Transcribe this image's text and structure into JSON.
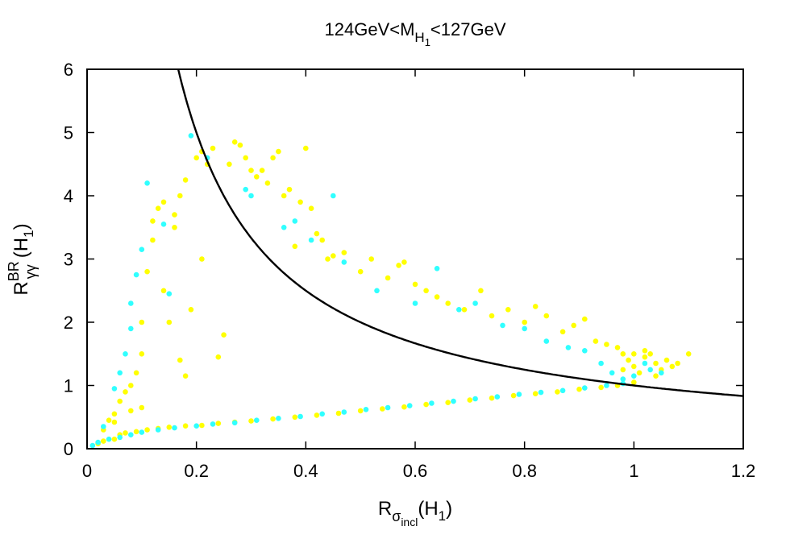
{
  "chart_data": {
    "type": "scatter",
    "title": {
      "main": "124GeV<M",
      "sub": "H",
      "subsub": "1",
      "tail": "<127GeV"
    },
    "xlabel": {
      "main": "R",
      "sub": "σ",
      "subsub": "incl",
      "tail": "(H",
      "tail_sub": "1",
      "close": ")"
    },
    "ylabel": {
      "main": "R",
      "sup": "BR",
      "sub": "γγ",
      "tail": "(H",
      "tail_sub": "1",
      "close": ")"
    },
    "xlim": [
      0,
      1.2
    ],
    "ylim": [
      0,
      6
    ],
    "xticks": [
      0,
      0.2,
      0.4,
      0.6,
      0.8,
      1,
      1.2
    ],
    "xtick_labels": [
      "0",
      "0.2",
      "0.4",
      "0.6",
      "0.8",
      "1",
      "1.2"
    ],
    "yticks": [
      0,
      1,
      2,
      3,
      4,
      5,
      6
    ],
    "ytick_labels": [
      "0",
      "1",
      "2",
      "3",
      "4",
      "5",
      "6"
    ],
    "grid": false,
    "curve": {
      "name": "x*y=1",
      "equation": "y = 1/x",
      "color": "#000000"
    },
    "series": [
      {
        "name": "yellow points",
        "color": "#ffff00",
        "points": [
          [
            0.02,
            0.08
          ],
          [
            0.03,
            0.12
          ],
          [
            0.05,
            0.15
          ],
          [
            0.06,
            0.22
          ],
          [
            0.07,
            0.25
          ],
          [
            0.09,
            0.27
          ],
          [
            0.11,
            0.3
          ],
          [
            0.13,
            0.32
          ],
          [
            0.15,
            0.34
          ],
          [
            0.18,
            0.36
          ],
          [
            0.21,
            0.37
          ],
          [
            0.24,
            0.4
          ],
          [
            0.27,
            0.42
          ],
          [
            0.3,
            0.44
          ],
          [
            0.34,
            0.47
          ],
          [
            0.38,
            0.5
          ],
          [
            0.42,
            0.53
          ],
          [
            0.46,
            0.56
          ],
          [
            0.5,
            0.6
          ],
          [
            0.54,
            0.63
          ],
          [
            0.58,
            0.66
          ],
          [
            0.62,
            0.7
          ],
          [
            0.66,
            0.73
          ],
          [
            0.7,
            0.77
          ],
          [
            0.74,
            0.8
          ],
          [
            0.78,
            0.84
          ],
          [
            0.82,
            0.87
          ],
          [
            0.86,
            0.9
          ],
          [
            0.9,
            0.94
          ],
          [
            0.94,
            0.97
          ],
          [
            0.97,
            1.0
          ],
          [
            1.0,
            1.05
          ],
          [
            0.03,
            0.3
          ],
          [
            0.04,
            0.45
          ],
          [
            0.05,
            0.55
          ],
          [
            0.06,
            0.75
          ],
          [
            0.05,
            0.42
          ],
          [
            0.07,
            0.9
          ],
          [
            0.08,
            1.0
          ],
          [
            0.09,
            1.2
          ],
          [
            0.08,
            0.6
          ],
          [
            0.1,
            0.65
          ],
          [
            0.1,
            1.5
          ],
          [
            0.1,
            2.0
          ],
          [
            0.11,
            2.8
          ],
          [
            0.12,
            3.3
          ],
          [
            0.12,
            3.6
          ],
          [
            0.13,
            3.8
          ],
          [
            0.14,
            2.5
          ],
          [
            0.14,
            3.9
          ],
          [
            0.15,
            2.0
          ],
          [
            0.16,
            3.5
          ],
          [
            0.16,
            3.7
          ],
          [
            0.17,
            4.0
          ],
          [
            0.17,
            1.4
          ],
          [
            0.18,
            4.25
          ],
          [
            0.18,
            1.15
          ],
          [
            0.19,
            2.2
          ],
          [
            0.2,
            4.6
          ],
          [
            0.21,
            4.7
          ],
          [
            0.21,
            3.0
          ],
          [
            0.22,
            4.5
          ],
          [
            0.23,
            4.75
          ],
          [
            0.24,
            1.45
          ],
          [
            0.25,
            1.8
          ],
          [
            0.26,
            4.5
          ],
          [
            0.27,
            4.85
          ],
          [
            0.28,
            4.8
          ],
          [
            0.29,
            4.6
          ],
          [
            0.3,
            4.4
          ],
          [
            0.31,
            4.3
          ],
          [
            0.32,
            4.4
          ],
          [
            0.33,
            4.2
          ],
          [
            0.34,
            4.6
          ],
          [
            0.35,
            4.7
          ],
          [
            0.36,
            4.0
          ],
          [
            0.37,
            4.1
          ],
          [
            0.38,
            3.2
          ],
          [
            0.39,
            3.9
          ],
          [
            0.4,
            4.75
          ],
          [
            0.41,
            3.8
          ],
          [
            0.42,
            3.4
          ],
          [
            0.43,
            3.3
          ],
          [
            0.44,
            3.0
          ],
          [
            0.45,
            3.05
          ],
          [
            0.47,
            3.1
          ],
          [
            0.5,
            2.8
          ],
          [
            0.52,
            3.0
          ],
          [
            0.55,
            2.7
          ],
          [
            0.57,
            2.9
          ],
          [
            0.58,
            2.95
          ],
          [
            0.6,
            2.6
          ],
          [
            0.62,
            2.5
          ],
          [
            0.64,
            2.4
          ],
          [
            0.66,
            2.3
          ],
          [
            0.69,
            2.2
          ],
          [
            0.72,
            2.5
          ],
          [
            0.74,
            2.1
          ],
          [
            0.77,
            2.2
          ],
          [
            0.8,
            2.0
          ],
          [
            0.82,
            2.25
          ],
          [
            0.84,
            2.1
          ],
          [
            0.87,
            1.85
          ],
          [
            0.89,
            1.95
          ],
          [
            0.91,
            2.05
          ],
          [
            0.93,
            1.7
          ],
          [
            0.95,
            1.65
          ],
          [
            0.97,
            1.6
          ],
          [
            0.98,
            1.5
          ],
          [
            0.99,
            1.4
          ],
          [
            1.0,
            1.3
          ],
          [
            1.01,
            1.2
          ],
          [
            1.02,
            1.45
          ],
          [
            1.03,
            1.5
          ],
          [
            1.04,
            1.35
          ],
          [
            1.05,
            1.25
          ],
          [
            1.06,
            1.4
          ],
          [
            1.07,
            1.3
          ],
          [
            1.08,
            1.35
          ],
          [
            1.1,
            1.5
          ],
          [
            1.02,
            1.55
          ],
          [
            1.04,
            1.15
          ],
          [
            1.0,
            1.5
          ],
          [
            0.98,
            1.25
          ]
        ]
      },
      {
        "name": "cyan points",
        "color": "#30ffff",
        "points": [
          [
            0.01,
            0.05
          ],
          [
            0.02,
            0.1
          ],
          [
            0.04,
            0.15
          ],
          [
            0.06,
            0.18
          ],
          [
            0.08,
            0.22
          ],
          [
            0.1,
            0.26
          ],
          [
            0.13,
            0.3
          ],
          [
            0.16,
            0.33
          ],
          [
            0.2,
            0.36
          ],
          [
            0.23,
            0.39
          ],
          [
            0.27,
            0.41
          ],
          [
            0.31,
            0.45
          ],
          [
            0.35,
            0.48
          ],
          [
            0.39,
            0.51
          ],
          [
            0.43,
            0.55
          ],
          [
            0.47,
            0.58
          ],
          [
            0.51,
            0.62
          ],
          [
            0.55,
            0.65
          ],
          [
            0.59,
            0.68
          ],
          [
            0.63,
            0.72
          ],
          [
            0.67,
            0.75
          ],
          [
            0.71,
            0.79
          ],
          [
            0.75,
            0.82
          ],
          [
            0.79,
            0.86
          ],
          [
            0.83,
            0.89
          ],
          [
            0.87,
            0.92
          ],
          [
            0.91,
            0.96
          ],
          [
            0.95,
            1.0
          ],
          [
            0.98,
            1.03
          ],
          [
            0.03,
            0.35
          ],
          [
            0.05,
            0.95
          ],
          [
            0.06,
            1.2
          ],
          [
            0.07,
            1.5
          ],
          [
            0.08,
            1.9
          ],
          [
            0.08,
            2.3
          ],
          [
            0.09,
            2.75
          ],
          [
            0.1,
            3.15
          ],
          [
            0.11,
            4.2
          ],
          [
            0.14,
            3.55
          ],
          [
            0.15,
            2.45
          ],
          [
            0.19,
            4.95
          ],
          [
            0.22,
            4.6
          ],
          [
            0.29,
            4.1
          ],
          [
            0.3,
            4.0
          ],
          [
            0.36,
            3.5
          ],
          [
            0.38,
            3.6
          ],
          [
            0.41,
            3.3
          ],
          [
            0.45,
            4.0
          ],
          [
            0.47,
            2.95
          ],
          [
            0.53,
            2.5
          ],
          [
            0.6,
            2.3
          ],
          [
            0.64,
            2.85
          ],
          [
            0.68,
            2.2
          ],
          [
            0.71,
            2.3
          ],
          [
            0.76,
            1.95
          ],
          [
            0.8,
            1.9
          ],
          [
            0.84,
            1.7
          ],
          [
            0.88,
            1.6
          ],
          [
            0.91,
            1.55
          ],
          [
            0.94,
            1.35
          ],
          [
            0.96,
            1.2
          ],
          [
            0.98,
            1.1
          ],
          [
            1.0,
            1.15
          ],
          [
            1.02,
            1.35
          ],
          [
            1.03,
            1.25
          ],
          [
            1.05,
            1.2
          ]
        ]
      }
    ]
  }
}
